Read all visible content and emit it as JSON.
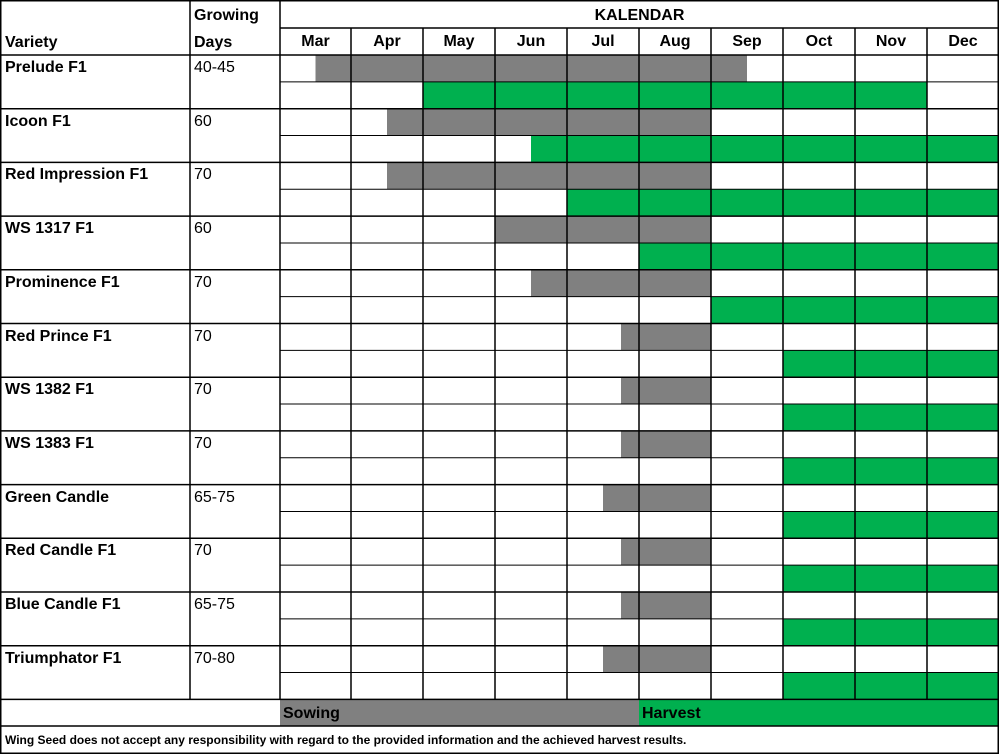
{
  "header": {
    "variety_label": "Variety",
    "growing_label_line1": "Growing",
    "growing_label_line2": "Days",
    "calendar_label": "KALENDAR"
  },
  "legend": {
    "sowing_label": "Sowing",
    "harvest_label": "Harvest"
  },
  "footer": {
    "disclaimer": "Wing Seed does not accept any responsibility with regard to the provided information and the achieved harvest results."
  },
  "colors": {
    "sowing": "#808080",
    "harvest": "#00b04f",
    "grid": "#000000",
    "background": "#ffffff"
  },
  "chart_data": {
    "type": "table",
    "months": [
      "Mar",
      "Apr",
      "May",
      "Jun",
      "Jul",
      "Aug",
      "Sep",
      "Oct",
      "Nov",
      "Dec"
    ],
    "rows": [
      {
        "variety": "Prelude F1",
        "days": "40-45",
        "sowing": [
          3.5,
          9.5
        ],
        "harvest": [
          5.0,
          12.0
        ]
      },
      {
        "variety": "Icoon F1",
        "days": "60",
        "sowing": [
          4.5,
          9.0
        ],
        "harvest": [
          6.5,
          13.0
        ]
      },
      {
        "variety": "Red Impression F1",
        "days": "70",
        "sowing": [
          4.5,
          9.0
        ],
        "harvest": [
          7.0,
          13.0
        ]
      },
      {
        "variety": "WS 1317 F1",
        "days": "60",
        "sowing": [
          6.0,
          9.0
        ],
        "harvest": [
          8.0,
          13.0
        ]
      },
      {
        "variety": "Prominence F1",
        "days": "70",
        "sowing": [
          6.5,
          9.0
        ],
        "harvest": [
          9.0,
          13.0
        ]
      },
      {
        "variety": "Red Prince F1",
        "days": "70",
        "sowing": [
          7.75,
          9.0
        ],
        "harvest": [
          10.0,
          13.0
        ]
      },
      {
        "variety": "WS 1382 F1",
        "days": "70",
        "sowing": [
          7.75,
          9.0
        ],
        "harvest": [
          10.0,
          13.0
        ]
      },
      {
        "variety": "WS 1383 F1",
        "days": "70",
        "sowing": [
          7.75,
          9.0
        ],
        "harvest": [
          10.0,
          13.0
        ]
      },
      {
        "variety": "Green Candle",
        "days": "65-75",
        "sowing": [
          7.5,
          9.0
        ],
        "harvest": [
          10.0,
          13.0
        ]
      },
      {
        "variety": "Red Candle F1",
        "days": "70",
        "sowing": [
          7.75,
          9.0
        ],
        "harvest": [
          10.0,
          13.0
        ]
      },
      {
        "variety": "Blue Candle F1",
        "days": "65-75",
        "sowing": [
          7.75,
          9.0
        ],
        "harvest": [
          10.0,
          13.0
        ]
      },
      {
        "variety": "Triumphator F1",
        "days": "70-80",
        "sowing": [
          7.5,
          9.0
        ],
        "harvest": [
          10.0,
          13.0
        ]
      }
    ]
  }
}
